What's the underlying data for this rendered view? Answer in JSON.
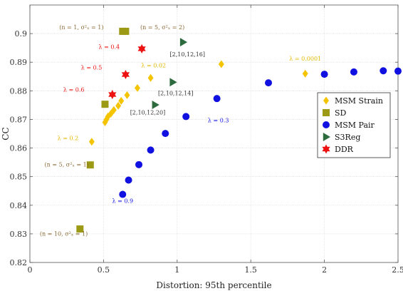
{
  "chart_data": {
    "type": "scatter",
    "xlabel": "Distortion: 95th percentile",
    "ylabel": "CC",
    "xlim": [
      0,
      2.5
    ],
    "ylim": [
      0.82,
      0.91
    ],
    "xticks": [
      0,
      0.5,
      1,
      1.5,
      2,
      2.5
    ],
    "xtick_labels": [
      "0",
      "0.5",
      "1",
      "1.5",
      "2",
      "2.5"
    ],
    "yticks": [
      0.82,
      0.83,
      0.84,
      0.85,
      0.86,
      0.87,
      0.88,
      0.89,
      0.9
    ],
    "ytick_labels": [
      "0.82",
      "0.83",
      "0.84",
      "0.85",
      "0.86",
      "0.87",
      "0.88",
      "0.89",
      "0.9"
    ],
    "grid": true,
    "legend_position": "right",
    "series": [
      {
        "name": "MSM Strain",
        "marker": "diamond",
        "color": "#F5C400",
        "points": [
          {
            "x": 0.42,
            "y": 0.8622
          },
          {
            "x": 0.51,
            "y": 0.869
          },
          {
            "x": 0.52,
            "y": 0.87
          },
          {
            "x": 0.53,
            "y": 0.871
          },
          {
            "x": 0.55,
            "y": 0.872
          },
          {
            "x": 0.57,
            "y": 0.8733
          },
          {
            "x": 0.6,
            "y": 0.8748
          },
          {
            "x": 0.62,
            "y": 0.8765
          },
          {
            "x": 0.66,
            "y": 0.8785
          },
          {
            "x": 0.73,
            "y": 0.881
          },
          {
            "x": 0.82,
            "y": 0.8845
          },
          {
            "x": 1.3,
            "y": 0.8893
          },
          {
            "x": 1.87,
            "y": 0.886
          }
        ]
      },
      {
        "name": "SD",
        "marker": "square",
        "color": "#9C9A14",
        "points": [
          {
            "x": 0.34,
            "y": 0.8317
          },
          {
            "x": 0.41,
            "y": 0.8541
          },
          {
            "x": 0.51,
            "y": 0.8753
          },
          {
            "x": 0.63,
            "y": 0.9008
          },
          {
            "x": 0.65,
            "y": 0.9008
          }
        ]
      },
      {
        "name": "MSM Pair",
        "marker": "circle",
        "color": "#1010E0",
        "points": [
          {
            "x": 0.63,
            "y": 0.8438
          },
          {
            "x": 0.67,
            "y": 0.8488
          },
          {
            "x": 0.74,
            "y": 0.8542
          },
          {
            "x": 0.82,
            "y": 0.8593
          },
          {
            "x": 0.92,
            "y": 0.8651
          },
          {
            "x": 1.06,
            "y": 0.871
          },
          {
            "x": 1.27,
            "y": 0.8773
          },
          {
            "x": 1.62,
            "y": 0.8828
          },
          {
            "x": 2.0,
            "y": 0.8858
          },
          {
            "x": 2.2,
            "y": 0.8866
          },
          {
            "x": 2.4,
            "y": 0.887
          },
          {
            "x": 2.5,
            "y": 0.8869
          }
        ]
      },
      {
        "name": "S3Reg",
        "marker": "triangle-right",
        "color": "#2D6A3E",
        "points": [
          {
            "x": 0.85,
            "y": 0.8751
          },
          {
            "x": 0.97,
            "y": 0.883
          },
          {
            "x": 1.04,
            "y": 0.897
          }
        ]
      },
      {
        "name": "DDR",
        "marker": "hexagram",
        "color": "#EE1111",
        "points": [
          {
            "x": 0.56,
            "y": 0.8787
          },
          {
            "x": 0.65,
            "y": 0.8857
          },
          {
            "x": 0.76,
            "y": 0.8947
          }
        ]
      }
    ],
    "annotations": [
      {
        "text": "(n = 1, σ²ₓ = 1)",
        "x": 0.35,
        "y": 0.9015,
        "color": "#8A6A35",
        "anchor": "middle"
      },
      {
        "text": "(n = 5, σ²ₓ = 2)",
        "x": 0.9,
        "y": 0.9015,
        "color": "#8A6A35",
        "anchor": "middle"
      },
      {
        "text": "(n = 5, σ²ₓ = 1)",
        "x": 0.25,
        "y": 0.8535,
        "color": "#8A6A35",
        "anchor": "middle"
      },
      {
        "text": "(n = 10, σ²ₓ = 1)",
        "x": 0.23,
        "y": 0.8293,
        "color": "#8A6A35",
        "anchor": "middle"
      },
      {
        "text": "λ = 0.4",
        "x": 0.61,
        "y": 0.8947,
        "color": "#EE1111",
        "anchor": "end"
      },
      {
        "text": "λ = 0.5",
        "x": 0.49,
        "y": 0.8875,
        "color": "#EE1111",
        "anchor": "end"
      },
      {
        "text": "λ = 0.6",
        "x": 0.37,
        "y": 0.8797,
        "color": "#EE1111",
        "anchor": "end"
      },
      {
        "text": "λ = 0.02",
        "x": 0.84,
        "y": 0.8882,
        "color": "#E2B800",
        "anchor": "middle"
      },
      {
        "text": "λ = 0.0001",
        "x": 1.87,
        "y": 0.8906,
        "color": "#E2B800",
        "anchor": "middle"
      },
      {
        "text": "λ = 0.2",
        "x": 0.33,
        "y": 0.8628,
        "color": "#E2B800",
        "anchor": "end"
      },
      {
        "text": "λ = 0.3",
        "x": 1.28,
        "y": 0.869,
        "color": "#1010E0",
        "anchor": "middle"
      },
      {
        "text": "λ = 0.9",
        "x": 0.63,
        "y": 0.8408,
        "color": "#1010E0",
        "anchor": "middle"
      },
      {
        "text": "[2,10,12,16]",
        "x": 1.07,
        "y": 0.892,
        "color": "#333333",
        "anchor": "middle"
      },
      {
        "text": "[2,10,12,14]",
        "x": 0.99,
        "y": 0.8785,
        "color": "#333333",
        "anchor": "middle"
      },
      {
        "text": "[2,10,12,20]",
        "x": 0.8,
        "y": 0.8717,
        "color": "#333333",
        "anchor": "middle"
      }
    ]
  }
}
